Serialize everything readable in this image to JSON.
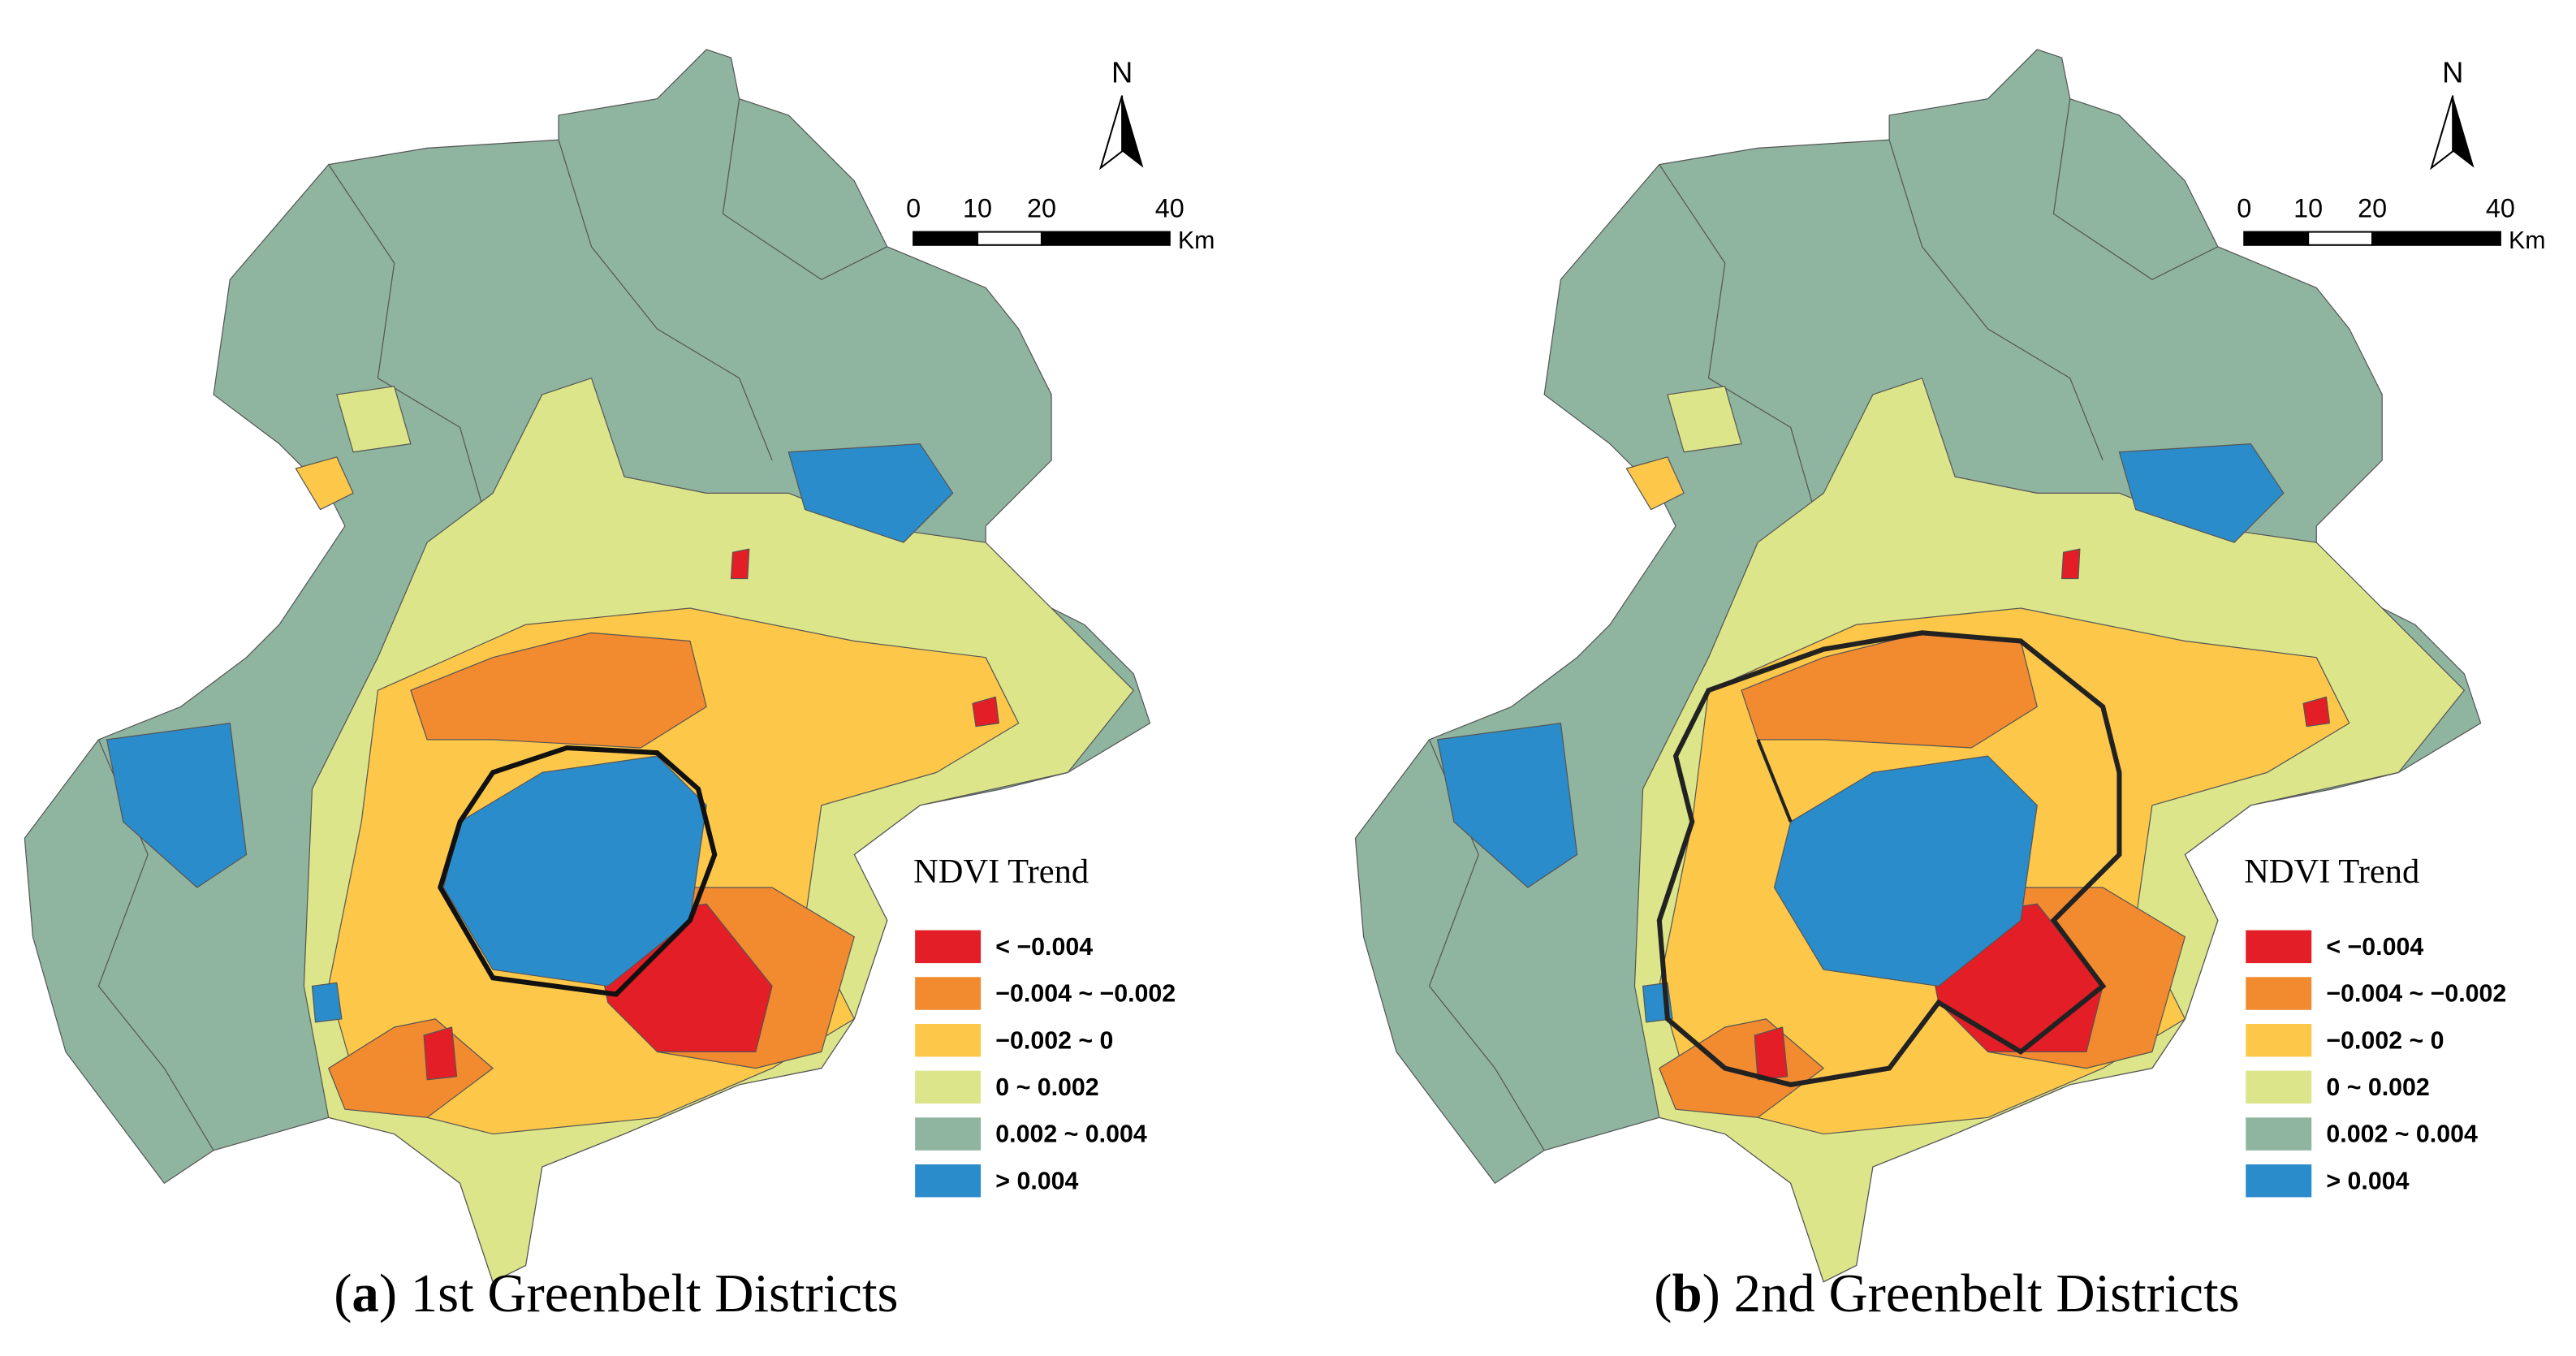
{
  "panels": [
    {
      "caption": {
        "open": "(",
        "letter": "a",
        "rest": ") 1st Greenbelt Districts"
      },
      "north": "N",
      "scale": {
        "ticks": [
          0,
          10,
          20,
          40
        ],
        "unit": "Km"
      },
      "legend": {
        "title": "NDVI Trend",
        "items": [
          {
            "label": "< −0.004",
            "color": "#e41e26"
          },
          {
            "label": "−0.004 ~ −0.002",
            "color": "#f28a30"
          },
          {
            "label": "−0.002 ~ 0",
            "color": "#fdc84a"
          },
          {
            "label": "0 ~ 0.002",
            "color": "#dde58a"
          },
          {
            "label": "0.002 ~ 0.004",
            "color": "#8fb5a0"
          },
          {
            "label": "> 0.004",
            "color": "#2b8ccb"
          }
        ]
      }
    },
    {
      "caption": {
        "open": "(",
        "letter": "b",
        "rest": ") 2nd Greenbelt Districts"
      },
      "north": "N",
      "scale": {
        "ticks": [
          0,
          10,
          20,
          40
        ],
        "unit": "Km"
      },
      "legend": {
        "title": "NDVI Trend",
        "items": [
          {
            "label": "< −0.004",
            "color": "#e41e26"
          },
          {
            "label": "−0.004 ~ −0.002",
            "color": "#f28a30"
          },
          {
            "label": "−0.002 ~ 0",
            "color": "#fdc84a"
          },
          {
            "label": "0 ~ 0.002",
            "color": "#dde58a"
          },
          {
            "label": "0.002 ~ 0.004",
            "color": "#8fb5a0"
          },
          {
            "label": "> 0.004",
            "color": "#2b8ccb"
          }
        ]
      }
    }
  ]
}
